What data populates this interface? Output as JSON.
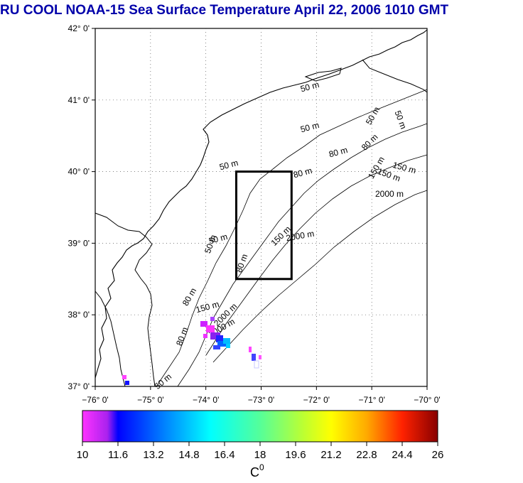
{
  "title": "RU COOL  NOAA-15 Sea Surface Temperature April 22, 2006 1010 GMT",
  "map": {
    "lon_range": [
      -76,
      -70
    ],
    "lat_range": [
      37,
      42
    ],
    "lon_ticks": [
      "−76° 0'",
      "−75° 0'",
      "−74° 0'",
      "−73° 0'",
      "−72° 0'",
      "−71° 0'",
      "−70° 0'"
    ],
    "lat_ticks": [
      "37° 0'",
      "38° 0'",
      "39° 0'",
      "40° 0'",
      "41° 0'",
      "42° 0'"
    ],
    "grid": "dotted",
    "study_box": {
      "lon": [
        -73.45,
        -72.45
      ],
      "lat": [
        38.5,
        40.0
      ]
    },
    "contour_labels": [
      "50 m",
      "50 m",
      "50 m",
      "80 m",
      "80 m",
      "80 m",
      "150 m",
      "150 m",
      "150 m",
      "2000 m",
      "2000 m",
      "2000 m",
      "50 m",
      "80 m",
      "50 m",
      "50 m",
      "150 m",
      "80 m",
      "50 m",
      "150 m",
      "80 m",
      "2000 m",
      "50 m"
    ]
  },
  "colorbar": {
    "ticks": [
      "10",
      "11.6",
      "13.2",
      "14.8",
      "16.4",
      "18",
      "19.6",
      "21.2",
      "22.8",
      "24.4",
      "26"
    ],
    "unit": "C",
    "unit_superscript": "0",
    "range": [
      10,
      26
    ]
  },
  "colors": {
    "title": "#0000aa",
    "land_coast": "#000000",
    "box": "#000000"
  }
}
